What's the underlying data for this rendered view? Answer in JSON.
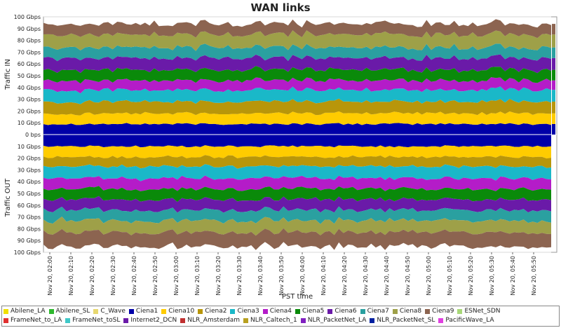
{
  "chart_data": {
    "type": "area",
    "title": "WAN links",
    "xlabel": "PST time",
    "ylabel_top": "Traffic IN",
    "ylabel_bottom": "Traffic OUT",
    "yticks": [
      "100 Gbps",
      "90 Gbps",
      "80 Gbps",
      "70 Gbps",
      "60 Gbps",
      "50 Gbps",
      "40 Gbps",
      "30 Gbps",
      "20 Gbps",
      "10 Gbps",
      "0 bps",
      "10 Gbps",
      "20 Gbps",
      "30 Gbps",
      "40 Gbps",
      "50 Gbps",
      "60 Gbps",
      "70 Gbps",
      "80 Gbps",
      "90 Gbps",
      "100 Gbps"
    ],
    "ylim_gbps": [
      -100,
      100
    ],
    "xticks": [
      "Nov 20, 02:00",
      "Nov 20, 02:10",
      "Nov 20, 02:20",
      "Nov 20, 02:30",
      "Nov 20, 02:40",
      "Nov 20, 02:50",
      "Nov 20, 03:00",
      "Nov 20, 03:10",
      "Nov 20, 03:20",
      "Nov 20, 03:30",
      "Nov 20, 03:40",
      "Nov 20, 03:50",
      "Nov 20, 04:00",
      "Nov 20, 04:10",
      "Nov 20, 04:20",
      "Nov 20, 04:30",
      "Nov 20, 04:40",
      "Nov 20, 04:50",
      "Nov 20, 05:00",
      "Nov 20, 05:10",
      "Nov 20, 05:20",
      "Nov 20, 05:30",
      "Nov 20, 05:40",
      "Nov 20, 05:50"
    ],
    "stacked": true,
    "grid": true,
    "legend_position": "bottom",
    "series": [
      {
        "name": "Ciena1",
        "color": "#0000a8",
        "in_gbps": 9,
        "out_gbps": -10
      },
      {
        "name": "Ciena10",
        "color": "#ffcc00",
        "in_gbps": 9,
        "out_gbps": -9
      },
      {
        "name": "Ciena2",
        "color": "#b8960a",
        "in_gbps": 10,
        "out_gbps": -8
      },
      {
        "name": "Ciena3",
        "color": "#1ab8c8",
        "in_gbps": 10,
        "out_gbps": -10
      },
      {
        "name": "Ciena4",
        "color": "#b41cc8",
        "in_gbps": 8,
        "out_gbps": -9
      },
      {
        "name": "Ciena5",
        "color": "#0a8a0a",
        "in_gbps": 9,
        "out_gbps": -9
      },
      {
        "name": "Ciena6",
        "color": "#6a1aa8",
        "in_gbps": 10,
        "out_gbps": -9
      },
      {
        "name": "Ciena7",
        "color": "#2aa0a0",
        "in_gbps": 9,
        "out_gbps": -9
      },
      {
        "name": "Ciena8",
        "color": "#9ea048",
        "in_gbps": 11,
        "out_gbps": -10
      },
      {
        "name": "Ciena9",
        "color": "#8c6450",
        "in_gbps": 9,
        "out_gbps": -12
      }
    ]
  },
  "legend": [
    {
      "name": "Abilene_LA",
      "color": "#f0e000"
    },
    {
      "name": "Abilene_SL",
      "color": "#2eb82e"
    },
    {
      "name": "C_Wave",
      "color": "#e8d870"
    },
    {
      "name": "Ciena1",
      "color": "#0000a8"
    },
    {
      "name": "Ciena10",
      "color": "#ffcc00"
    },
    {
      "name": "Ciena2",
      "color": "#b8960a"
    },
    {
      "name": "Ciena3",
      "color": "#1ab8c8"
    },
    {
      "name": "Ciena4",
      "color": "#b41cc8"
    },
    {
      "name": "Ciena5",
      "color": "#0a8a0a"
    },
    {
      "name": "Ciena6",
      "color": "#6a1aa8"
    },
    {
      "name": "Ciena7",
      "color": "#2aa0a0"
    },
    {
      "name": "Ciena8",
      "color": "#9ea048"
    },
    {
      "name": "Ciena9",
      "color": "#8c6450"
    },
    {
      "name": "ESNet_SDN",
      "color": "#a8d878"
    },
    {
      "name": "FrameNet_to_LA",
      "color": "#e03030"
    },
    {
      "name": "FrameNet_toSL",
      "color": "#40c8c8"
    },
    {
      "name": "Internet2_DCN",
      "color": "#6a1aa8"
    },
    {
      "name": "NLR_Amsterdam",
      "color": "#c03030"
    },
    {
      "name": "NLR_Caltech_1",
      "color": "#b8a020"
    },
    {
      "name": "NLR_PacketNet_LA",
      "color": "#8020c0"
    },
    {
      "name": "NLR_PacketNet_SL",
      "color": "#0020a0"
    },
    {
      "name": "PacificWave_LA",
      "color": "#e040e0"
    }
  ]
}
